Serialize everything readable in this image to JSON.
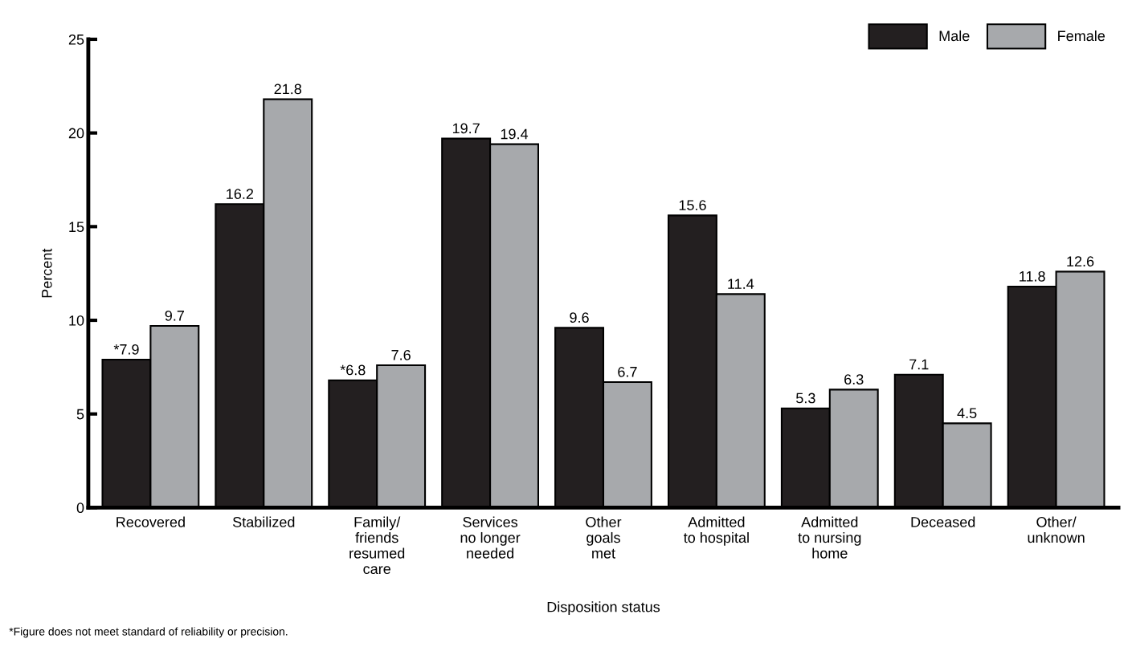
{
  "chart_data": {
    "type": "bar",
    "xlabel": "Disposition status",
    "ylabel": "Percent",
    "categories": [
      "Recovered",
      "Stabilized",
      "Family/\nfriends\nresumed\ncare",
      "Services\nno longer\nneeded",
      "Other\ngoals\nmet",
      "Admitted\nto hospital",
      "Admitted\nto nursing\nhome",
      "Deceased",
      "Other/\nunknown"
    ],
    "series": [
      {
        "name": "Male",
        "color": "#231f20",
        "values": [
          7.9,
          16.2,
          6.8,
          19.7,
          9.6,
          15.6,
          5.3,
          7.1,
          11.8
        ],
        "value_labels": [
          "*7.9",
          "16.2",
          "*6.8",
          "19.7",
          "9.6",
          "15.6",
          "5.3",
          "7.1",
          "11.8"
        ]
      },
      {
        "name": "Female",
        "color": "#a7a9ac",
        "values": [
          9.7,
          21.8,
          7.6,
          19.4,
          6.7,
          11.4,
          6.3,
          4.5,
          12.6
        ],
        "value_labels": [
          "9.7",
          "21.8",
          "7.6",
          "19.4",
          "6.7",
          "11.4",
          "6.3",
          "4.5",
          "12.6"
        ]
      }
    ],
    "ylim": [
      0,
      25
    ],
    "yticks": [
      0,
      5,
      10,
      15,
      20,
      25
    ],
    "grid": false,
    "legend": "top right",
    "annotations": [
      "*Figure does not meet standard of reliability or precision."
    ]
  }
}
